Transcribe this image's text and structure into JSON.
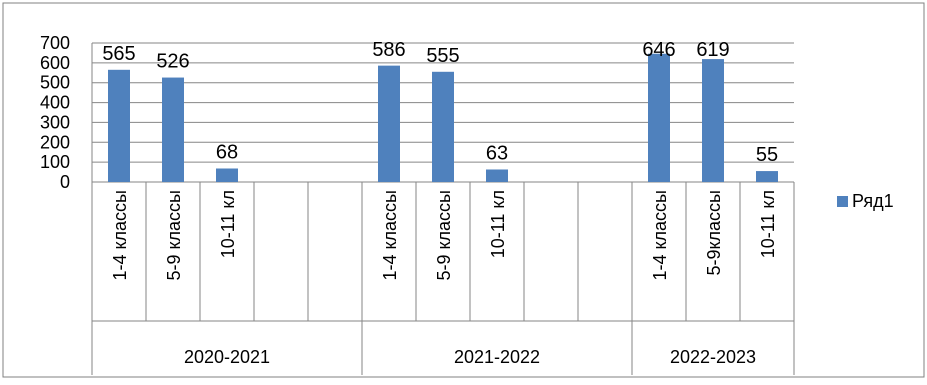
{
  "chart_data": {
    "type": "bar",
    "categories": [
      "1-4 классы",
      "5-9 классы",
      "10-11 кл",
      "",
      "",
      "1-4 классы",
      "5-9 классы",
      "10-11 кл",
      "",
      "",
      "1-4 классы",
      "5-9классы",
      "10-11 кл"
    ],
    "groups": [
      {
        "label": "2020-2021",
        "span": 5
      },
      {
        "label": "2021-2022",
        "span": 5
      },
      {
        "label": "2022-2023",
        "span": 3
      }
    ],
    "series": [
      {
        "name": "Ряд1",
        "values": [
          565,
          526,
          68,
          null,
          null,
          586,
          555,
          63,
          null,
          null,
          646,
          619,
          55
        ]
      }
    ],
    "y_ticks": [
      "0",
      "100",
      "200",
      "300",
      "400",
      "500",
      "600",
      "700"
    ],
    "ylim": [
      0,
      700
    ],
    "grid": true,
    "legend_position": "right",
    "colors": {
      "bar": "#4f81bd",
      "grid": "#868686",
      "axis": "#868686",
      "border": "#808080"
    }
  }
}
